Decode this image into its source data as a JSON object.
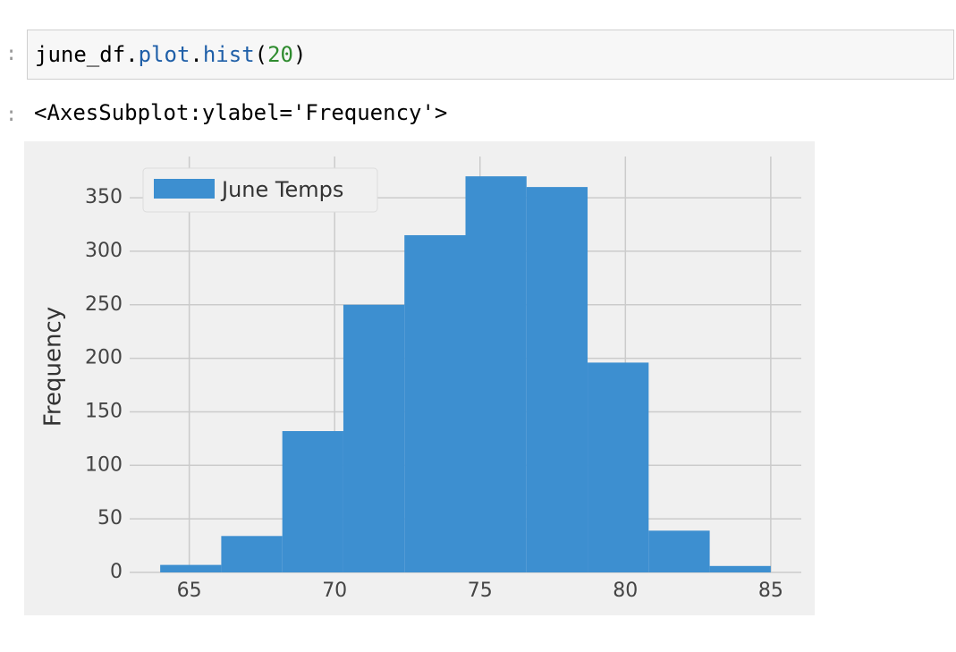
{
  "input": {
    "prompt": ":",
    "tokens": [
      "june_df",
      ".",
      "plot",
      ".",
      "hist",
      "(",
      "20",
      ")"
    ]
  },
  "output": {
    "prompt": ":",
    "text": "<AxesSubplot:ylabel='Frequency'>"
  },
  "chart_data": {
    "type": "histogram",
    "ylabel": "Frequency",
    "bins": [
      64,
      66.1,
      68.2,
      70.3,
      72.4,
      74.5,
      76.6,
      78.7,
      80.8,
      82.9,
      85
    ],
    "series": [
      {
        "name": "June Temps",
        "color": "#3d8fd0",
        "values": [
          7,
          34,
          132,
          250,
          315,
          370,
          360,
          196,
          39,
          6
        ]
      }
    ],
    "xlim": [
      62.95,
      86.05
    ],
    "xticks": [
      65,
      70,
      75,
      80,
      85
    ],
    "ylim": [
      0,
      388.5
    ],
    "yticks": [
      0,
      50,
      100,
      150,
      200,
      250,
      300,
      350
    ],
    "grid": true,
    "legend": "upper left"
  }
}
